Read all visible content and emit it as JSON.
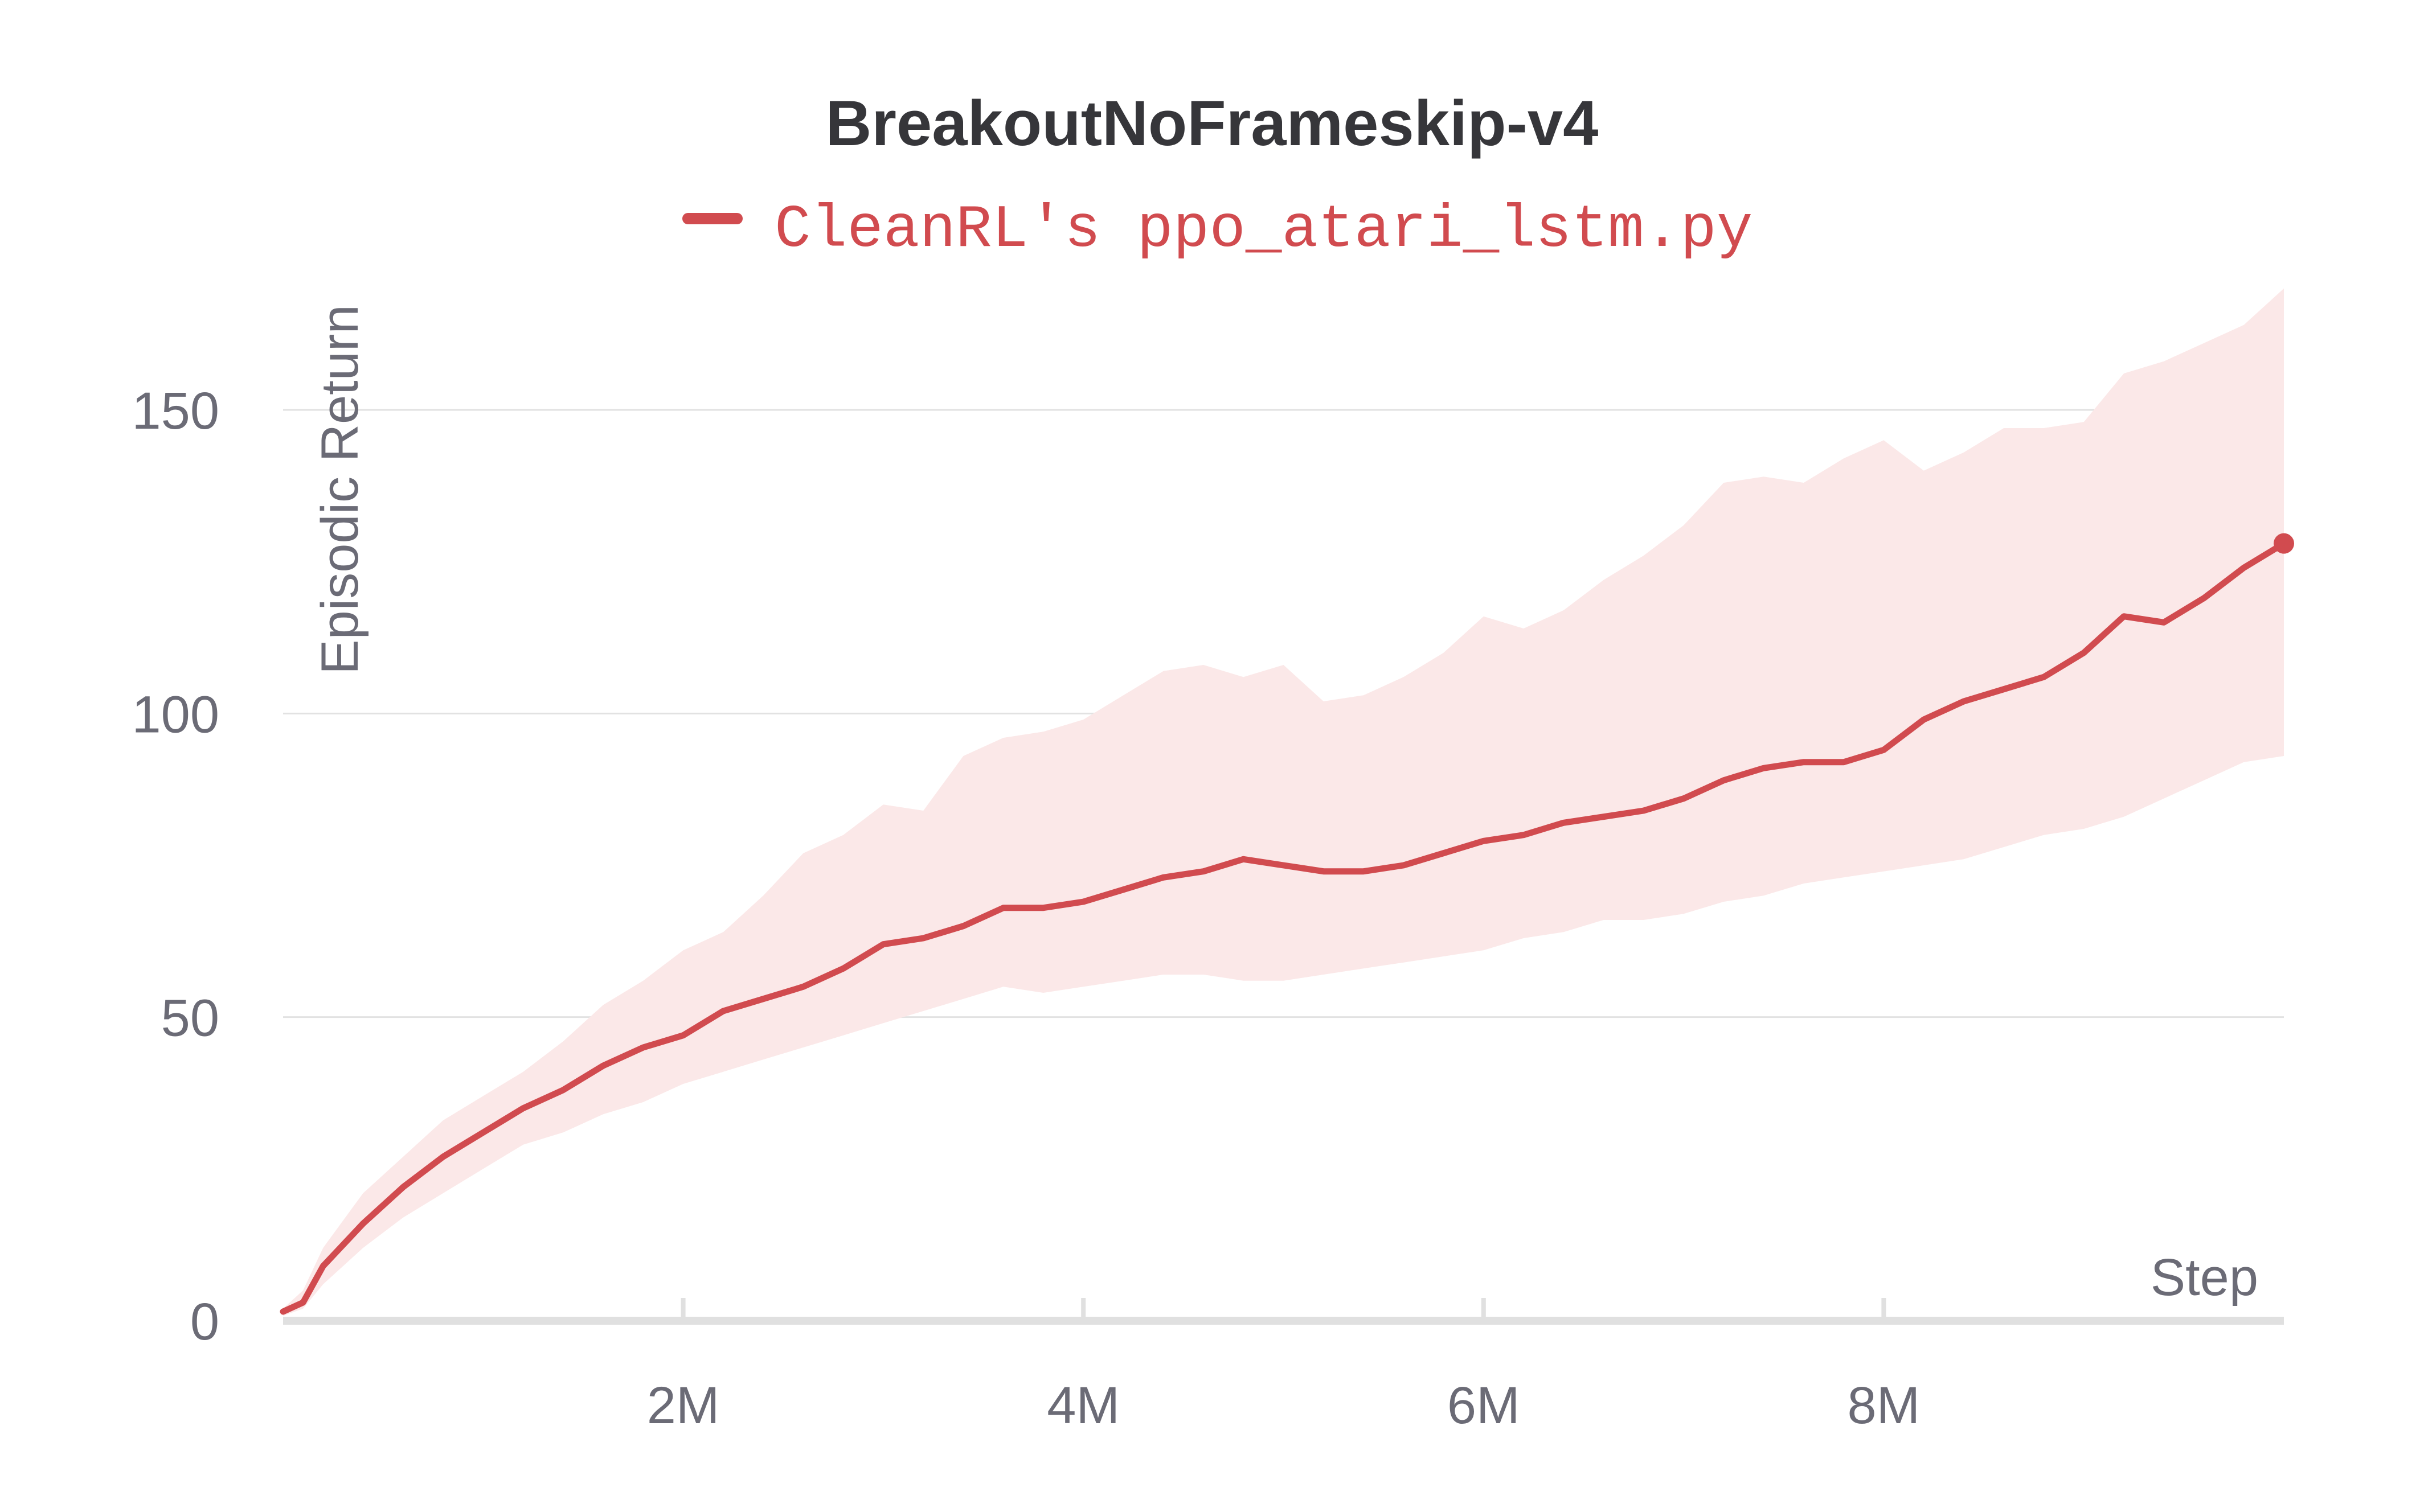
{
  "chart_data": {
    "type": "line",
    "title": "BreakoutNoFrameskip-v4",
    "xlabel": "Step",
    "ylabel": "Episodic Return",
    "xlim": [
      0,
      10000000
    ],
    "ylim": [
      0,
      170
    ],
    "x_ticks": [
      {
        "value": 2000000,
        "label": "2M"
      },
      {
        "value": 4000000,
        "label": "4M"
      },
      {
        "value": 6000000,
        "label": "6M"
      },
      {
        "value": 8000000,
        "label": "8M"
      }
    ],
    "y_ticks": [
      {
        "value": 0,
        "label": "0"
      },
      {
        "value": 50,
        "label": "50"
      },
      {
        "value": 100,
        "label": "100"
      },
      {
        "value": 150,
        "label": "150"
      }
    ],
    "grid": true,
    "legend_position": "top-center",
    "series": [
      {
        "name": "CleanRL's ppo_atari_lstm.py",
        "color": "#d14b4f",
        "band_color": "#fbe8e8",
        "x": [
          0,
          100000,
          200000,
          400000,
          600000,
          800000,
          1000000,
          1200000,
          1400000,
          1600000,
          1800000,
          2000000,
          2200000,
          2400000,
          2600000,
          2800000,
          3000000,
          3200000,
          3400000,
          3600000,
          3800000,
          4000000,
          4200000,
          4400000,
          4600000,
          4800000,
          5000000,
          5200000,
          5400000,
          5600000,
          5800000,
          6000000,
          6200000,
          6400000,
          6600000,
          6800000,
          7000000,
          7200000,
          7400000,
          7600000,
          7800000,
          8000000,
          8200000,
          8400000,
          8600000,
          8800000,
          9000000,
          9200000,
          9400000,
          9600000,
          9800000,
          10000000
        ],
        "values": [
          1.5,
          3,
          9,
          16,
          22,
          27,
          31,
          35,
          38,
          42,
          45,
          47,
          51,
          53,
          55,
          58,
          62,
          63,
          65,
          68,
          68,
          69,
          71,
          73,
          74,
          76,
          75,
          74,
          74,
          75,
          77,
          79,
          80,
          82,
          83,
          84,
          86,
          89,
          91,
          92,
          92,
          94,
          99,
          102,
          104,
          106,
          110,
          116,
          115,
          119,
          124,
          128
        ],
        "upper": [
          2,
          5,
          12,
          21,
          27,
          33,
          37,
          41,
          46,
          52,
          56,
          61,
          64,
          70,
          77,
          80,
          85,
          84,
          93,
          96,
          97,
          99,
          103,
          107,
          108,
          106,
          108,
          102,
          103,
          106,
          110,
          116,
          114,
          117,
          122,
          126,
          131,
          138,
          139,
          138,
          142,
          145,
          140,
          143,
          147,
          147,
          148,
          156,
          158,
          161,
          164,
          170
        ],
        "lower": [
          0.8,
          2,
          6,
          12,
          17,
          21,
          25,
          29,
          31,
          34,
          36,
          39,
          41,
          43,
          45,
          47,
          49,
          51,
          53,
          55,
          54,
          55,
          56,
          57,
          57,
          56,
          56,
          57,
          58,
          59,
          60,
          61,
          63,
          64,
          66,
          66,
          67,
          69,
          70,
          72,
          73,
          74,
          75,
          76,
          78,
          80,
          81,
          83,
          86,
          89,
          92,
          93
        ]
      }
    ]
  }
}
